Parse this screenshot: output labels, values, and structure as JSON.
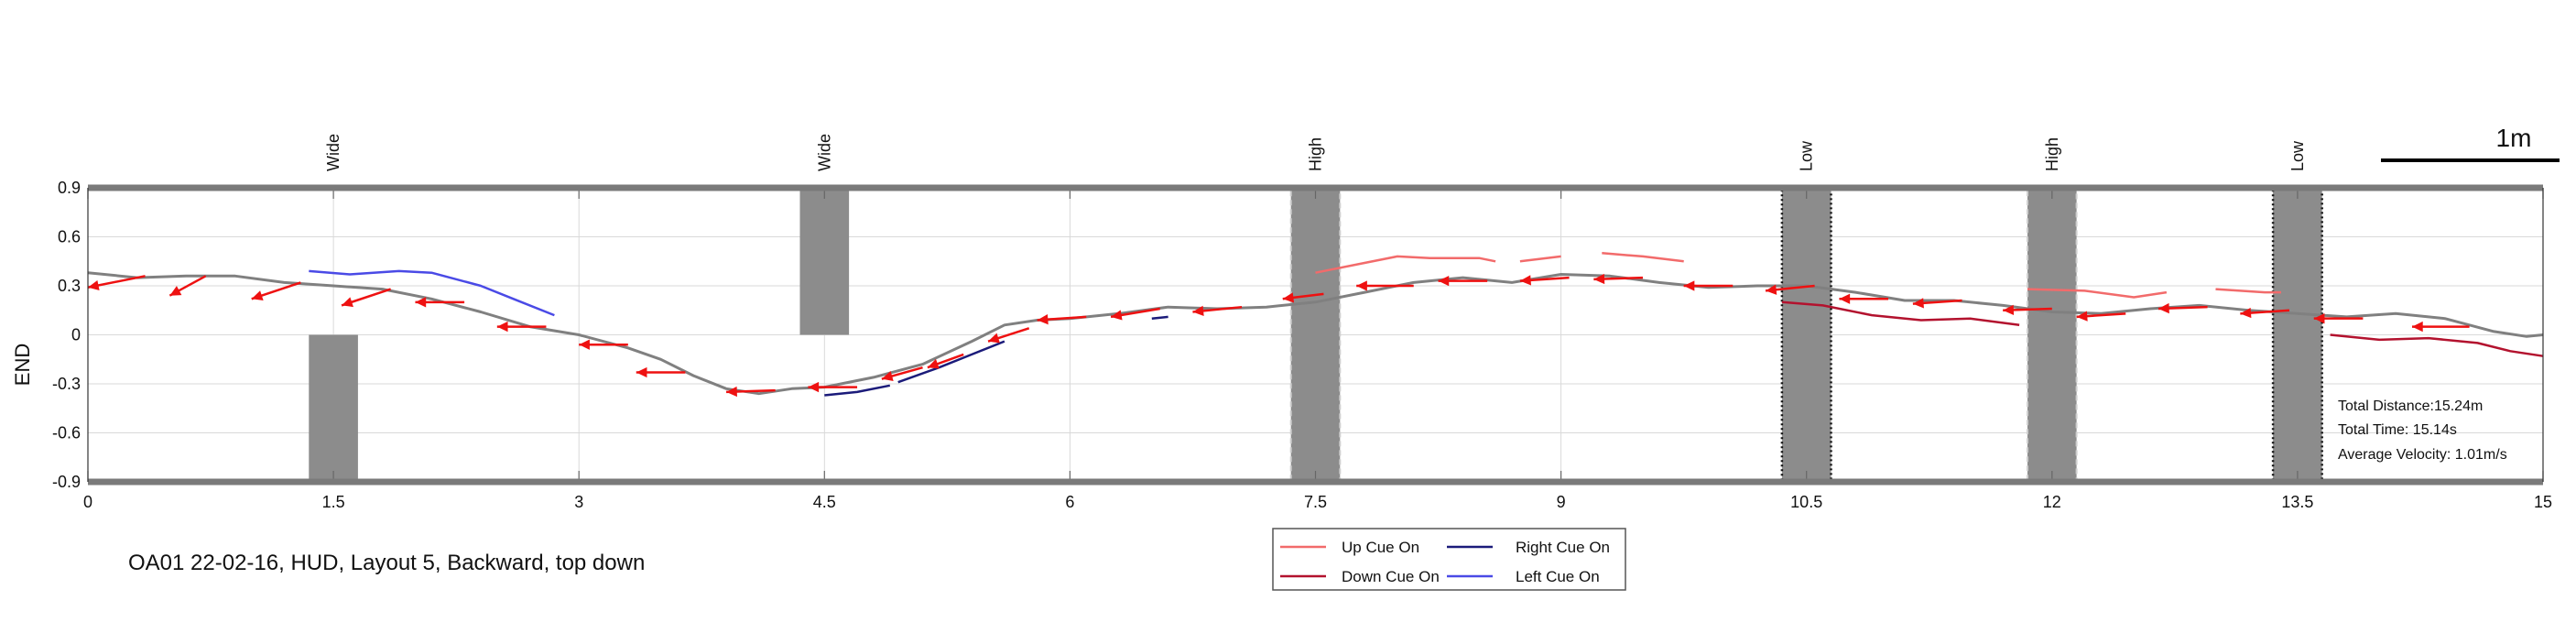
{
  "chart_data": {
    "type": "line",
    "title": "OA01 22-02-16, HUD, Layout 5, Backward, top down",
    "xlabel": "",
    "ylabel": "END",
    "xlim": [
      0,
      15
    ],
    "ylim": [
      -0.9,
      0.9
    ],
    "xticks": [
      "0",
      "1.5",
      "3",
      "4.5",
      "6",
      "7.5",
      "9",
      "10.5",
      "12",
      "13.5",
      "15"
    ],
    "yticks": [
      "0.9",
      "0.6",
      "0.3",
      "0",
      "-0.3",
      "-0.6",
      "-0.9"
    ],
    "grid": true,
    "scale_label": "1m",
    "obstacles": [
      {
        "label": "Wide",
        "x": 1.5,
        "width": 0.3,
        "style": "lower-half"
      },
      {
        "label": "Wide",
        "x": 4.5,
        "width": 0.3,
        "style": "upper-half"
      },
      {
        "label": "High",
        "x": 7.5,
        "width": 0.3,
        "style": "full-dashed-light"
      },
      {
        "label": "Low",
        "x": 10.5,
        "width": 0.3,
        "style": "full-dotted-dark"
      },
      {
        "label": "High",
        "x": 12,
        "width": 0.3,
        "style": "full-dashed-light"
      },
      {
        "label": "Low",
        "x": 13.5,
        "width": 0.3,
        "style": "full-dotted-dark"
      }
    ],
    "path": {
      "color": "#808080",
      "x": [
        0,
        0.3,
        0.6,
        0.9,
        1.2,
        1.5,
        1.8,
        2.1,
        2.4,
        2.7,
        3.0,
        3.3,
        3.5,
        3.7,
        3.9,
        4.1,
        4.3,
        4.5,
        4.8,
        5.1,
        5.4,
        5.6,
        5.8,
        6.0,
        6.3,
        6.6,
        6.9,
        7.2,
        7.5,
        7.8,
        8.1,
        8.4,
        8.7,
        9.0,
        9.3,
        9.6,
        9.9,
        10.2,
        10.5,
        10.8,
        11.1,
        11.4,
        11.7,
        12.0,
        12.3,
        12.6,
        12.9,
        13.2,
        13.5,
        13.8,
        14.1,
        14.4,
        14.7,
        14.9,
        15.0
      ],
      "y": [
        0.38,
        0.35,
        0.36,
        0.36,
        0.32,
        0.3,
        0.28,
        0.22,
        0.14,
        0.05,
        0.0,
        -0.08,
        -0.15,
        -0.25,
        -0.33,
        -0.36,
        -0.33,
        -0.32,
        -0.26,
        -0.18,
        -0.04,
        0.06,
        0.09,
        0.1,
        0.13,
        0.17,
        0.16,
        0.17,
        0.2,
        0.26,
        0.32,
        0.35,
        0.32,
        0.37,
        0.36,
        0.32,
        0.29,
        0.3,
        0.3,
        0.26,
        0.21,
        0.21,
        0.18,
        0.14,
        0.13,
        0.16,
        0.18,
        0.15,
        0.13,
        0.11,
        0.13,
        0.1,
        0.02,
        -0.01,
        0.0
      ]
    },
    "series": [
      {
        "name": "Up Cue On",
        "color": "#f26b6b",
        "segments": [
          {
            "x": [
              7.5,
              7.8,
              8.0,
              8.2,
              8.5,
              8.6
            ],
            "y": [
              0.38,
              0.44,
              0.48,
              0.47,
              0.47,
              0.45
            ]
          },
          {
            "x": [
              8.75,
              9.0
            ],
            "y": [
              0.45,
              0.48
            ]
          },
          {
            "x": [
              9.25,
              9.5,
              9.75
            ],
            "y": [
              0.5,
              0.48,
              0.45
            ]
          },
          {
            "x": [
              11.85,
              12.2,
              12.5,
              12.7
            ],
            "y": [
              0.28,
              0.27,
              0.23,
              0.26
            ]
          },
          {
            "x": [
              13.0,
              13.3,
              13.4
            ],
            "y": [
              0.28,
              0.26,
              0.26
            ]
          }
        ]
      },
      {
        "name": "Down Cue On",
        "color": "#b3122e",
        "segments": [
          {
            "x": [
              10.35,
              10.6,
              10.9,
              11.2,
              11.5,
              11.8
            ],
            "y": [
              0.2,
              0.18,
              0.12,
              0.09,
              0.1,
              0.06
            ]
          },
          {
            "x": [
              13.7,
              14.0,
              14.3,
              14.6,
              14.8,
              15.0
            ],
            "y": [
              0.0,
              -0.03,
              -0.02,
              -0.05,
              -0.1,
              -0.13
            ]
          }
        ]
      },
      {
        "name": "Right Cue On",
        "color": "#1b1b7a",
        "segments": [
          {
            "x": [
              4.5,
              4.7,
              4.9
            ],
            "y": [
              -0.37,
              -0.35,
              -0.31
            ]
          },
          {
            "x": [
              4.95,
              5.2,
              5.4,
              5.6
            ],
            "y": [
              -0.29,
              -0.2,
              -0.12,
              -0.04
            ]
          },
          {
            "x": [
              6.5,
              6.6
            ],
            "y": [
              0.1,
              0.11
            ]
          }
        ]
      },
      {
        "name": "Left Cue On",
        "color": "#4a4ae6",
        "segments": [
          {
            "x": [
              1.35,
              1.6,
              1.9,
              2.1,
              2.4,
              2.6,
              2.85
            ],
            "y": [
              0.39,
              0.37,
              0.39,
              0.38,
              0.3,
              0.22,
              0.12
            ]
          }
        ]
      }
    ],
    "arrows": {
      "color": "#ee1111",
      "items": [
        {
          "x": 0.35,
          "y": 0.36,
          "dx": -0.35,
          "dy": -0.07
        },
        {
          "x": 0.72,
          "y": 0.36,
          "dx": -0.22,
          "dy": -0.12
        },
        {
          "x": 1.3,
          "y": 0.32,
          "dx": -0.3,
          "dy": -0.1
        },
        {
          "x": 1.85,
          "y": 0.28,
          "dx": -0.3,
          "dy": -0.1
        },
        {
          "x": 2.3,
          "y": 0.2,
          "dx": -0.3,
          "dy": 0.0
        },
        {
          "x": 2.8,
          "y": 0.05,
          "dx": -0.3,
          "dy": 0.0
        },
        {
          "x": 3.3,
          "y": -0.06,
          "dx": -0.3,
          "dy": 0.0
        },
        {
          "x": 3.65,
          "y": -0.23,
          "dx": -0.3,
          "dy": 0.0
        },
        {
          "x": 4.2,
          "y": -0.34,
          "dx": -0.3,
          "dy": -0.01
        },
        {
          "x": 4.7,
          "y": -0.32,
          "dx": -0.3,
          "dy": 0.0
        },
        {
          "x": 5.1,
          "y": -0.2,
          "dx": -0.25,
          "dy": -0.07
        },
        {
          "x": 5.35,
          "y": -0.12,
          "dx": -0.22,
          "dy": -0.08
        },
        {
          "x": 5.75,
          "y": 0.04,
          "dx": -0.25,
          "dy": -0.08
        },
        {
          "x": 6.1,
          "y": 0.11,
          "dx": -0.3,
          "dy": -0.02
        },
        {
          "x": 6.55,
          "y": 0.16,
          "dx": -0.3,
          "dy": -0.05
        },
        {
          "x": 7.05,
          "y": 0.17,
          "dx": -0.3,
          "dy": -0.03
        },
        {
          "x": 7.55,
          "y": 0.25,
          "dx": -0.25,
          "dy": -0.03
        },
        {
          "x": 8.1,
          "y": 0.3,
          "dx": -0.35,
          "dy": 0.0
        },
        {
          "x": 8.55,
          "y": 0.33,
          "dx": -0.3,
          "dy": 0.0
        },
        {
          "x": 9.05,
          "y": 0.35,
          "dx": -0.3,
          "dy": -0.02
        },
        {
          "x": 9.5,
          "y": 0.35,
          "dx": -0.3,
          "dy": -0.01
        },
        {
          "x": 10.05,
          "y": 0.3,
          "dx": -0.3,
          "dy": 0.0
        },
        {
          "x": 10.55,
          "y": 0.3,
          "dx": -0.3,
          "dy": -0.03
        },
        {
          "x": 11.0,
          "y": 0.22,
          "dx": -0.3,
          "dy": 0.0
        },
        {
          "x": 11.45,
          "y": 0.21,
          "dx": -0.3,
          "dy": -0.02
        },
        {
          "x": 12.0,
          "y": 0.16,
          "dx": -0.3,
          "dy": -0.01
        },
        {
          "x": 12.45,
          "y": 0.13,
          "dx": -0.3,
          "dy": -0.02
        },
        {
          "x": 12.95,
          "y": 0.17,
          "dx": -0.3,
          "dy": -0.01
        },
        {
          "x": 13.45,
          "y": 0.15,
          "dx": -0.3,
          "dy": -0.02
        },
        {
          "x": 13.9,
          "y": 0.1,
          "dx": -0.3,
          "dy": 0.0
        },
        {
          "x": 14.55,
          "y": 0.05,
          "dx": -0.35,
          "dy": 0.0
        }
      ]
    },
    "legend": {
      "placement": "bottom-center",
      "entries": [
        {
          "name": "Up Cue On",
          "color": "#f26b6b"
        },
        {
          "name": "Right Cue On",
          "color": "#1b1b7a"
        },
        {
          "name": "Down Cue On",
          "color": "#b3122e"
        },
        {
          "name": "Left Cue On",
          "color": "#4a4ae6"
        }
      ]
    },
    "stats": [
      "Total Distance:15.24m",
      "Total Time: 15.14s",
      "Average Velocity: 1.01m/s"
    ]
  }
}
